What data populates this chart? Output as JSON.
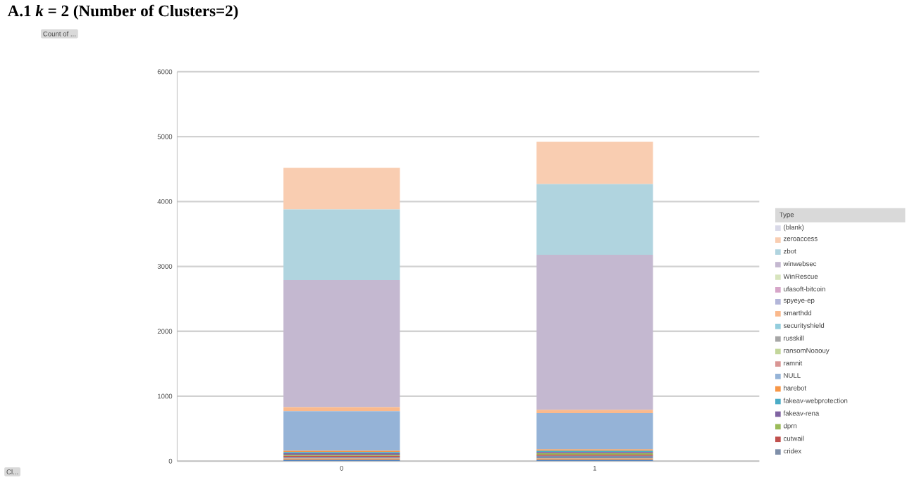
{
  "chart_data": {
    "type": "bar",
    "stacked": true,
    "title": "A.1 *k* = 2 (Number of Clusters=2)",
    "categories": [
      "0",
      "1"
    ],
    "series": [
      {
        "color": "#4f81bd",
        "values": [
          20,
          20
        ]
      },
      {
        "color": "#f79646",
        "values": [
          20,
          20
        ]
      },
      {
        "name": "cridex",
        "color": "#7f8fa9",
        "values": [
          20,
          40
        ]
      },
      {
        "name": "cutwail",
        "color": "#c0504d",
        "values": [
          20,
          20
        ]
      },
      {
        "name": "dprn",
        "color": "#9bbb59",
        "values": [
          20,
          20
        ]
      },
      {
        "name": "fakeav-rena",
        "color": "#8064a2",
        "values": [
          20,
          20
        ]
      },
      {
        "name": "fakeav-webprotection",
        "color": "#4bacc6",
        "values": [
          20,
          20
        ]
      },
      {
        "name": "harebot",
        "color": "#f79646",
        "values": [
          20,
          20
        ]
      },
      {
        "name": "NULL",
        "color": "#95b3d7",
        "values": [
          610,
          560
        ]
      },
      {
        "name": "ramnit",
        "color": "#d99694",
        "values": [
          null,
          null
        ]
      },
      {
        "name": "ransomNoaouy",
        "color": "#c3d69b",
        "values": [
          null,
          null
        ]
      },
      {
        "name": "russkill",
        "color": "#a6a6a6",
        "values": [
          null,
          null
        ]
      },
      {
        "name": "securityshield",
        "color": "#93cddd",
        "values": [
          null,
          null
        ]
      },
      {
        "name": "smarthdd",
        "color": "#fab98c",
        "values": [
          60,
          50
        ]
      },
      {
        "name": "spyeye-ep",
        "color": "#b3b6d9",
        "values": [
          null,
          null
        ]
      },
      {
        "name": "ufasoft-bitcoin",
        "color": "#d6a5c8",
        "values": [
          null,
          null
        ]
      },
      {
        "name": "WinRescue",
        "color": "#d7e4bd",
        "values": [
          null,
          null
        ]
      },
      {
        "name": "winwebsec",
        "color": "#c4b8d0",
        "values": [
          1960,
          2390
        ]
      },
      {
        "name": "zbot",
        "color": "#b0d4df",
        "values": [
          1090,
          1090
        ]
      },
      {
        "name": "zeroaccess",
        "color": "#f9cdb1",
        "values": [
          640,
          650
        ]
      },
      {
        "name": "(blank)",
        "color": "#d9d9e8",
        "values": [
          null,
          null
        ]
      }
    ],
    "ylim": [
      0,
      6000
    ],
    "yticks": [
      0,
      1000,
      2000,
      3000,
      4000,
      5000,
      6000
    ],
    "grid": "y",
    "legend": "right",
    "legend_title": "Type",
    "annotations": [
      "Count of ...",
      "Cl..."
    ]
  }
}
